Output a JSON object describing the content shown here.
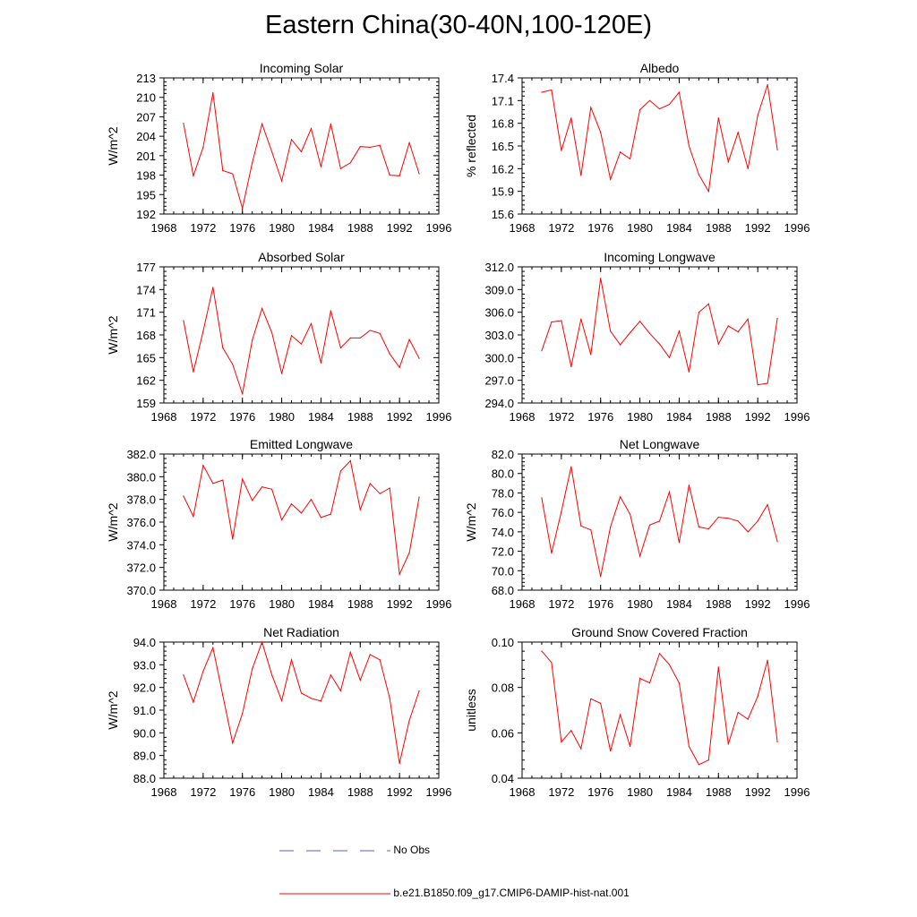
{
  "figure": {
    "title": "Eastern China(30-40N,100-120E)",
    "line_color": "#ff0000",
    "obs_color": "#5b5bd6"
  },
  "legend": {
    "obs_label": "No Obs",
    "model_label": "b.e21.B1850.f09_g17.CMIP6-DAMIP-hist-nat.001"
  },
  "chart_data": [
    {
      "type": "line",
      "title": "Incoming Solar",
      "ylabel": "W/m^2",
      "xlim": [
        1968,
        1996
      ],
      "x_ticks": [
        "1968",
        "1972",
        "1976",
        "1980",
        "1984",
        "1988",
        "1992",
        "1996"
      ],
      "ylim": [
        192,
        213
      ],
      "y_ticks": [
        "192",
        "195",
        "198",
        "201",
        "204",
        "207",
        "210",
        "213"
      ],
      "series": [
        {
          "x": [
            1970,
            1971,
            1972,
            1973,
            1974,
            1975,
            1976,
            1977,
            1978,
            1979,
            1980,
            1981,
            1982,
            1983,
            1984,
            1985,
            1986,
            1987,
            1988,
            1989,
            1990,
            1991,
            1992,
            1993,
            1994
          ],
          "values": [
            206.0,
            197.9,
            202.3,
            210.7,
            198.7,
            198.2,
            192.9,
            199.9,
            205.9,
            201.6,
            197.1,
            203.5,
            201.6,
            205.2,
            199.3,
            205.9,
            199.0,
            199.9,
            202.4,
            202.3,
            202.6,
            198.0,
            197.9,
            203.0,
            198.2
          ]
        }
      ]
    },
    {
      "type": "line",
      "title": "Albedo",
      "ylabel": "% reflected",
      "xlim": [
        1968,
        1996
      ],
      "x_ticks": [
        "1968",
        "1972",
        "1976",
        "1980",
        "1984",
        "1988",
        "1992",
        "1996"
      ],
      "ylim": [
        15.6,
        17.4
      ],
      "y_ticks": [
        "15.6",
        "15.9",
        "16.2",
        "16.5",
        "16.8",
        "17.1",
        "17.4"
      ],
      "series": [
        {
          "x": [
            1970,
            1971,
            1972,
            1973,
            1974,
            1975,
            1976,
            1977,
            1978,
            1979,
            1980,
            1981,
            1982,
            1983,
            1984,
            1985,
            1986,
            1987,
            1988,
            1989,
            1990,
            1991,
            1992,
            1993,
            1994
          ],
          "values": [
            17.21,
            17.24,
            16.44,
            16.87,
            16.11,
            17.01,
            16.68,
            16.06,
            16.42,
            16.33,
            16.98,
            17.1,
            16.99,
            17.05,
            17.21,
            16.5,
            16.12,
            15.9,
            16.87,
            16.29,
            16.68,
            16.2,
            16.9,
            17.31,
            16.45
          ]
        }
      ]
    },
    {
      "type": "line",
      "title": "Absorbed Solar",
      "ylabel": "W/m^2",
      "xlim": [
        1968,
        1996
      ],
      "x_ticks": [
        "1968",
        "1972",
        "1976",
        "1980",
        "1984",
        "1988",
        "1992",
        "1996"
      ],
      "ylim": [
        159,
        177
      ],
      "y_ticks": [
        "159",
        "162",
        "165",
        "168",
        "171",
        "174",
        "177"
      ],
      "series": [
        {
          "x": [
            1970,
            1971,
            1972,
            1973,
            1974,
            1975,
            1976,
            1977,
            1978,
            1979,
            1980,
            1981,
            1982,
            1983,
            1984,
            1985,
            1986,
            1987,
            1988,
            1989,
            1990,
            1991,
            1992,
            1993,
            1994
          ],
          "values": [
            169.9,
            163.1,
            168.5,
            174.3,
            166.3,
            164.1,
            160.2,
            167.3,
            171.5,
            168.3,
            162.9,
            167.9,
            166.8,
            169.5,
            164.3,
            171.2,
            166.3,
            167.6,
            167.6,
            168.6,
            168.2,
            165.5,
            163.7,
            167.4,
            164.9
          ]
        }
      ]
    },
    {
      "type": "line",
      "title": "Incoming Longwave",
      "ylabel": "",
      "xlim": [
        1968,
        1996
      ],
      "x_ticks": [
        "1968",
        "1972",
        "1976",
        "1980",
        "1984",
        "1988",
        "1992",
        "1996"
      ],
      "ylim": [
        294.0,
        312.0
      ],
      "y_ticks": [
        "294.0",
        "297.0",
        "300.0",
        "303.0",
        "306.0",
        "309.0",
        "312.0"
      ],
      "series": [
        {
          "x": [
            1970,
            1971,
            1972,
            1973,
            1974,
            1975,
            1976,
            1977,
            1978,
            1979,
            1980,
            1981,
            1982,
            1983,
            1984,
            1985,
            1986,
            1987,
            1988,
            1989,
            1990,
            1991,
            1992,
            1993,
            1994
          ],
          "values": [
            300.9,
            304.7,
            304.9,
            298.8,
            305.1,
            300.4,
            310.5,
            303.5,
            301.7,
            303.3,
            304.8,
            303.2,
            301.8,
            300.0,
            303.5,
            298.1,
            306.0,
            307.1,
            301.8,
            304.2,
            303.4,
            305.1,
            296.4,
            296.6,
            305.2
          ]
        }
      ]
    },
    {
      "type": "line",
      "title": "Emitted Longwave",
      "ylabel": "W/m^2",
      "xlim": [
        1968,
        1996
      ],
      "x_ticks": [
        "1968",
        "1972",
        "1976",
        "1980",
        "1984",
        "1988",
        "1992",
        "1996"
      ],
      "ylim": [
        370.0,
        382.0
      ],
      "y_ticks": [
        "370.0",
        "372.0",
        "374.0",
        "376.0",
        "378.0",
        "380.0",
        "382.0"
      ],
      "series": [
        {
          "x": [
            1970,
            1971,
            1972,
            1973,
            1974,
            1975,
            1976,
            1977,
            1978,
            1979,
            1980,
            1981,
            1982,
            1983,
            1984,
            1985,
            1986,
            1987,
            1988,
            1989,
            1990,
            1991,
            1992,
            1993,
            1994
          ],
          "values": [
            378.3,
            376.5,
            381.0,
            379.4,
            379.7,
            374.5,
            379.8,
            377.9,
            379.1,
            378.9,
            376.2,
            377.6,
            376.8,
            378.0,
            376.4,
            376.7,
            380.5,
            381.4,
            377.1,
            379.4,
            378.5,
            379.0,
            371.4,
            373.3,
            378.2
          ]
        }
      ]
    },
    {
      "type": "line",
      "title": "Net Longwave",
      "ylabel": "W/m^2",
      "xlim": [
        1968,
        1996
      ],
      "x_ticks": [
        "1968",
        "1972",
        "1976",
        "1980",
        "1984",
        "1988",
        "1992",
        "1996"
      ],
      "ylim": [
        68.0,
        82.0
      ],
      "y_ticks": [
        "68.0",
        "70.0",
        "72.0",
        "74.0",
        "76.0",
        "78.0",
        "80.0",
        "82.0"
      ],
      "series": [
        {
          "x": [
            1970,
            1971,
            1972,
            1973,
            1974,
            1975,
            1976,
            1977,
            1978,
            1979,
            1980,
            1981,
            1982,
            1983,
            1984,
            1985,
            1986,
            1987,
            1988,
            1989,
            1990,
            1991,
            1992,
            1993,
            1994
          ],
          "values": [
            77.5,
            71.8,
            76.1,
            80.7,
            74.6,
            74.2,
            69.4,
            74.5,
            77.6,
            75.8,
            71.5,
            74.7,
            75.1,
            78.1,
            72.9,
            78.8,
            74.5,
            74.3,
            75.5,
            75.4,
            75.1,
            74.0,
            75.1,
            76.8,
            73.0
          ]
        }
      ]
    },
    {
      "type": "line",
      "title": "Net Radiation",
      "ylabel": "W/m^2",
      "xlim": [
        1968,
        1996
      ],
      "x_ticks": [
        "1968",
        "1972",
        "1976",
        "1980",
        "1984",
        "1988",
        "1992",
        "1996"
      ],
      "ylim": [
        88.0,
        94.0
      ],
      "y_ticks": [
        "88.0",
        "89.0",
        "90.0",
        "91.0",
        "92.0",
        "93.0",
        "94.0"
      ],
      "series": [
        {
          "x": [
            1970,
            1971,
            1972,
            1973,
            1974,
            1975,
            1976,
            1977,
            1978,
            1979,
            1980,
            1981,
            1982,
            1983,
            1984,
            1985,
            1986,
            1987,
            1988,
            1989,
            1990,
            1991,
            1992,
            1993,
            1994
          ],
          "values": [
            92.55,
            91.35,
            92.72,
            93.75,
            91.65,
            89.55,
            90.85,
            92.82,
            94.0,
            92.55,
            91.42,
            93.22,
            91.75,
            91.52,
            91.4,
            92.55,
            91.85,
            93.55,
            92.32,
            93.45,
            93.22,
            91.52,
            88.65,
            90.55,
            91.85
          ]
        }
      ]
    },
    {
      "type": "line",
      "title": "Ground Snow Covered Fraction",
      "ylabel": "unitless",
      "xlim": [
        1968,
        1996
      ],
      "x_ticks": [
        "1968",
        "1972",
        "1976",
        "1980",
        "1984",
        "1988",
        "1992",
        "1996"
      ],
      "ylim": [
        0.04,
        0.1
      ],
      "y_ticks": [
        "0.04",
        "0.06",
        "0.08",
        "0.10"
      ],
      "series": [
        {
          "x": [
            1970,
            1971,
            1972,
            1973,
            1974,
            1975,
            1976,
            1977,
            1978,
            1979,
            1980,
            1981,
            1982,
            1983,
            1984,
            1985,
            1986,
            1987,
            1988,
            1989,
            1990,
            1991,
            1992,
            1993,
            1994
          ],
          "values": [
            0.096,
            0.091,
            0.056,
            0.061,
            0.053,
            0.075,
            0.073,
            0.052,
            0.068,
            0.054,
            0.084,
            0.082,
            0.095,
            0.09,
            0.082,
            0.054,
            0.046,
            0.048,
            0.089,
            0.055,
            0.069,
            0.066,
            0.076,
            0.092,
            0.056
          ]
        }
      ]
    }
  ]
}
